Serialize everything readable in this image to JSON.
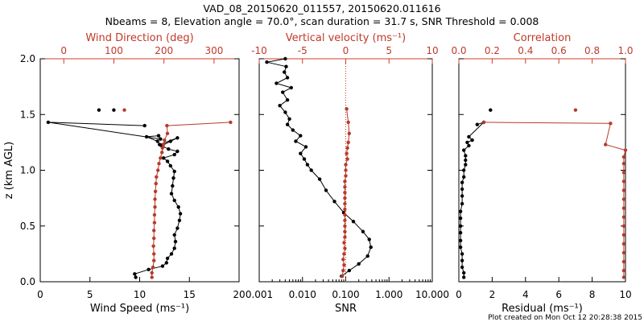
{
  "title": {
    "line1": "VAD_08_20150620_011557, 20150620.011616",
    "line2": "Nbeams = 8, Elevation angle = 70.0°, scan duration = 31.7 s, SNR Threshold = 0.008"
  },
  "footer": "Plot created on Mon Oct 12 20:28:38 2015",
  "colors": {
    "black_series": "#000000",
    "red_series": "#b83a2a",
    "red_axis": "#d03a2a"
  },
  "chart_data": [
    {
      "type": "scatter",
      "panel": "wind",
      "ylabel": "z (km AGL)",
      "ylim": [
        0,
        2
      ],
      "yticks": [
        "0.0",
        "0.5",
        "1.0",
        "1.5",
        "2.0"
      ],
      "bottom_axis": {
        "label": "Wind Speed",
        "unit": "(ms⁻¹)",
        "range": [
          0,
          20
        ],
        "ticks": [
          "0",
          "5",
          "10",
          "15",
          "20"
        ]
      },
      "top_axis": {
        "label": "Wind Direction (deg)",
        "range": [
          -47,
          350
        ],
        "ticks": [
          "0",
          "100",
          "200",
          "300"
        ]
      },
      "series": [
        {
          "axis": "bottom",
          "color": "black",
          "points": [
            [
              9.6,
              0.04
            ],
            [
              9.5,
              0.07
            ],
            [
              10.9,
              0.11
            ],
            [
              12.3,
              0.14
            ],
            [
              12.7,
              0.17
            ],
            [
              12.8,
              0.21
            ],
            [
              13.2,
              0.25
            ],
            [
              13.5,
              0.3
            ],
            [
              13.6,
              0.36
            ],
            [
              13.5,
              0.42
            ],
            [
              13.8,
              0.48
            ],
            [
              14.0,
              0.55
            ],
            [
              14.1,
              0.61
            ],
            [
              13.9,
              0.67
            ],
            [
              13.5,
              0.73
            ],
            [
              13.2,
              0.79
            ],
            [
              13.3,
              0.86
            ],
            [
              13.4,
              0.93
            ],
            [
              13.5,
              0.99
            ],
            [
              13.1,
              1.04
            ],
            [
              12.8,
              1.08
            ],
            [
              12.4,
              1.11
            ],
            [
              13.5,
              1.14
            ],
            [
              13.8,
              1.17
            ],
            [
              12.9,
              1.19
            ],
            [
              12.2,
              1.22
            ],
            [
              13.1,
              1.26
            ],
            [
              13.8,
              1.29
            ],
            [
              12.0,
              1.23
            ],
            [
              11.8,
              1.26
            ],
            [
              10.7,
              1.3
            ],
            [
              11.9,
              1.31
            ],
            [
              12.1,
              1.28
            ],
            [
              0.8,
              1.43
            ],
            [
              10.5,
              1.4
            ],
            [
              5.9,
              1.54
            ],
            [
              7.4,
              1.54
            ]
          ],
          "note": "connected line; final two points unconnected"
        },
        {
          "axis": "top",
          "color": "red",
          "points": [
            [
              176,
              0.04
            ],
            [
              176,
              0.08
            ],
            [
              178,
              0.13
            ],
            [
              180,
              0.19
            ],
            [
              180,
              0.25
            ],
            [
              179,
              0.32
            ],
            [
              180,
              0.39
            ],
            [
              180,
              0.46
            ],
            [
              181,
              0.53
            ],
            [
              181,
              0.6
            ],
            [
              182,
              0.67
            ],
            [
              182,
              0.74
            ],
            [
              183,
              0.81
            ],
            [
              184,
              0.88
            ],
            [
              185,
              0.94
            ],
            [
              188,
              1.0
            ],
            [
              190,
              1.06
            ],
            [
              193,
              1.11
            ],
            [
              196,
              1.16
            ],
            [
              197,
              1.2
            ],
            [
              199,
              1.23
            ],
            [
              201,
              1.27
            ],
            [
              207,
              1.33
            ],
            [
              206,
              1.4
            ],
            [
              333,
              1.43
            ],
            [
              121,
              1.54
            ]
          ],
          "note": "connected line; final point unconnected"
        }
      ]
    },
    {
      "type": "scatter",
      "panel": "snr",
      "bottom_axis": {
        "label": "SNR",
        "scale": "log",
        "range": [
          0.001,
          10
        ],
        "ticks": [
          "0.001",
          "0.010",
          "0.100",
          "1.000",
          "10.000"
        ]
      },
      "top_axis": {
        "label": "Vertical velocity",
        "unit": "(ms⁻¹)",
        "range": [
          -10,
          10
        ],
        "ticks": [
          "-10",
          "-5",
          "0",
          "5",
          "10"
        ]
      },
      "series": [
        {
          "axis": "bottom",
          "color": "black",
          "points": [
            [
              0.08,
              0.05
            ],
            [
              0.12,
              0.1
            ],
            [
              0.2,
              0.16
            ],
            [
              0.32,
              0.23
            ],
            [
              0.38,
              0.31
            ],
            [
              0.35,
              0.38
            ],
            [
              0.25,
              0.45
            ],
            [
              0.15,
              0.54
            ],
            [
              0.09,
              0.62
            ],
            [
              0.055,
              0.72
            ],
            [
              0.035,
              0.82
            ],
            [
              0.025,
              0.92
            ],
            [
              0.016,
              1.0
            ],
            [
              0.013,
              1.05
            ],
            [
              0.011,
              1.1
            ],
            [
              0.009,
              1.15
            ],
            [
              0.012,
              1.21
            ],
            [
              0.007,
              1.26
            ],
            [
              0.009,
              1.31
            ],
            [
              0.006,
              1.36
            ],
            [
              0.0045,
              1.41
            ],
            [
              0.005,
              1.46
            ],
            [
              0.004,
              1.52
            ],
            [
              0.003,
              1.58
            ],
            [
              0.0045,
              1.63
            ],
            [
              0.0035,
              1.7
            ],
            [
              0.0055,
              1.74
            ],
            [
              0.0025,
              1.78
            ],
            [
              0.0045,
              1.83
            ],
            [
              0.0038,
              1.88
            ],
            [
              0.0042,
              1.93
            ],
            [
              0.0015,
              1.97
            ],
            [
              0.004,
              2.0
            ]
          ]
        },
        {
          "axis": "top",
          "color": "red",
          "points": [
            [
              -0.4,
              0.05
            ],
            [
              -0.3,
              0.1
            ],
            [
              -0.2,
              0.15
            ],
            [
              -0.3,
              0.2
            ],
            [
              -0.2,
              0.25
            ],
            [
              -0.1,
              0.3
            ],
            [
              -0.2,
              0.35
            ],
            [
              -0.1,
              0.4
            ],
            [
              -0.1,
              0.45
            ],
            [
              -0.1,
              0.5
            ],
            [
              -0.1,
              0.55
            ],
            [
              -0.1,
              0.6
            ],
            [
              -0.1,
              0.65
            ],
            [
              -0.1,
              0.7
            ],
            [
              -0.1,
              0.75
            ],
            [
              -0.1,
              0.8
            ],
            [
              -0.1,
              0.85
            ],
            [
              -0.1,
              0.9
            ],
            [
              0,
              0.95
            ],
            [
              0,
              1.0
            ],
            [
              0,
              1.05
            ],
            [
              0.2,
              1.1
            ],
            [
              0.1,
              1.15
            ],
            [
              0.2,
              1.2
            ],
            [
              0.3,
              1.25
            ],
            [
              0.4,
              1.33
            ],
            [
              0.3,
              1.43
            ],
            [
              0.1,
              1.55
            ]
          ]
        }
      ],
      "reference_line": {
        "axis": "top",
        "value": 0,
        "style": "dotted",
        "color": "red"
      }
    },
    {
      "type": "scatter",
      "panel": "residual",
      "bottom_axis": {
        "label": "Residual",
        "unit": "(ms⁻¹)",
        "range": [
          0,
          10
        ],
        "ticks": [
          "0",
          "2",
          "4",
          "6",
          "8",
          "10"
        ]
      },
      "top_axis": {
        "label": "Correlation",
        "range": [
          0,
          1
        ],
        "ticks": [
          "0.0",
          "0.2",
          "0.4",
          "0.6",
          "0.8",
          "1.0"
        ]
      },
      "series": [
        {
          "axis": "bottom",
          "color": "black",
          "points": [
            [
              0.3,
              0.04
            ],
            [
              0.3,
              0.08
            ],
            [
              0.2,
              0.13
            ],
            [
              0.2,
              0.19
            ],
            [
              0.2,
              0.25
            ],
            [
              0.1,
              0.31
            ],
            [
              0.1,
              0.37
            ],
            [
              0.1,
              0.44
            ],
            [
              0.1,
              0.5
            ],
            [
              0.1,
              0.57
            ],
            [
              0.1,
              0.63
            ],
            [
              0.2,
              0.7
            ],
            [
              0.2,
              0.77
            ],
            [
              0.2,
              0.83
            ],
            [
              0.2,
              0.89
            ],
            [
              0.3,
              0.94
            ],
            [
              0.3,
              1.0
            ],
            [
              0.4,
              1.05
            ],
            [
              0.4,
              1.09
            ],
            [
              0.4,
              1.13
            ],
            [
              0.3,
              1.18
            ],
            [
              0.6,
              1.22
            ],
            [
              0.5,
              1.25
            ],
            [
              0.8,
              1.27
            ],
            [
              0.6,
              1.3
            ],
            [
              1.5,
              1.43
            ],
            [
              1.1,
              1.41
            ],
            [
              1.9,
              1.54
            ]
          ]
        },
        {
          "axis": "top",
          "color": "red",
          "points": [
            [
              0.99,
              0.04
            ],
            [
              0.99,
              0.1
            ],
            [
              0.99,
              0.18
            ],
            [
              0.99,
              0.26
            ],
            [
              0.99,
              0.34
            ],
            [
              0.99,
              0.42
            ],
            [
              0.99,
              0.5
            ],
            [
              0.99,
              0.58
            ],
            [
              0.99,
              0.66
            ],
            [
              0.99,
              0.74
            ],
            [
              0.99,
              0.82
            ],
            [
              0.99,
              0.9
            ],
            [
              0.99,
              0.98
            ],
            [
              0.99,
              1.06
            ],
            [
              0.99,
              1.12
            ],
            [
              1.0,
              1.18
            ],
            [
              0.88,
              1.23
            ],
            [
              0.91,
              1.42
            ],
            [
              0.15,
              1.43
            ],
            [
              0.7,
              1.54
            ]
          ]
        }
      ]
    }
  ]
}
